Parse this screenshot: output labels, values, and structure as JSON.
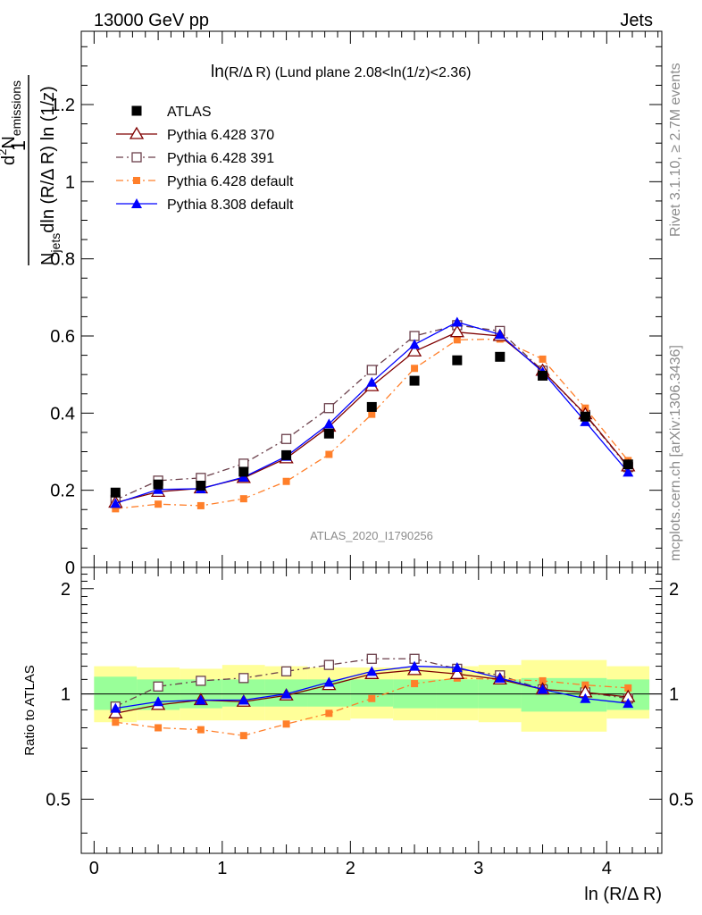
{
  "header": {
    "left": "13000 GeV pp",
    "right": "Jets"
  },
  "side_labels": {
    "rivet": "Rivet 3.1.10, ≥ 2.7M events",
    "mcplots": "mcplots.cern.ch [arXiv:1306.3436]"
  },
  "watermark": "ATLAS_2020_I1790256",
  "chart_data": [
    {
      "type": "scatter",
      "title_main": "ln",
      "title_detail": "(R/Δ R) (Lund plane 2.08<ln(1/z)<2.36)",
      "ylabel": "1/N_jets d²N_emissions / dln(R/Δ R) ln(1/z)",
      "ylabel_parts": {
        "one": "1",
        "d2": "d",
        "sq": "2",
        "N": "N",
        "emissions": "emissions",
        "Njets": "N",
        "jets": "jets",
        "dln": "dln (R/Δ R) ln (1/z)"
      },
      "xlim": [
        -0.1,
        4.43
      ],
      "ylim": [
        0,
        1.39
      ],
      "yticks": [
        0,
        0.2,
        0.4,
        0.6,
        0.8,
        1,
        1.2
      ],
      "ytick_labels": [
        "0",
        "0.2",
        "0.4",
        "0.6",
        "0.8",
        "1",
        "1.2"
      ],
      "x": [
        0.167,
        0.5,
        0.833,
        1.167,
        1.5,
        1.833,
        2.167,
        2.5,
        2.833,
        3.167,
        3.5,
        3.833,
        4.167
      ],
      "series": [
        {
          "name": "ATLAS",
          "color": "#000000",
          "marker": "square-filled",
          "line": "none",
          "values": [
            0.194,
            0.215,
            0.212,
            0.248,
            0.291,
            0.347,
            0.416,
            0.484,
            0.537,
            0.546,
            0.497,
            0.391,
            0.267
          ]
        },
        {
          "name": "Pythia 6.428 370",
          "color": "#7f0000",
          "marker": "triangle-open",
          "line": "solid",
          "values": [
            0.168,
            0.196,
            0.205,
            0.232,
            0.283,
            0.365,
            0.47,
            0.56,
            0.61,
            0.6,
            0.51,
            0.397,
            0.262
          ]
        },
        {
          "name": "Pythia 6.428 391",
          "color": "#6b3f4a",
          "marker": "square-open",
          "line": "dashdot",
          "values": [
            0.175,
            0.225,
            0.232,
            0.269,
            0.333,
            0.413,
            0.512,
            0.6,
            0.628,
            0.613,
            0.51,
            0.395,
            0.26
          ]
        },
        {
          "name": "Pythia 6.428 default",
          "color": "#ff7f2a",
          "marker": "square-filled-small",
          "line": "dashdot",
          "values": [
            0.152,
            0.164,
            0.16,
            0.178,
            0.223,
            0.293,
            0.397,
            0.516,
            0.59,
            0.592,
            0.54,
            0.413,
            0.277
          ]
        },
        {
          "name": "Pythia 8.308 default",
          "color": "#0000ff",
          "marker": "triangle-filled",
          "line": "solid",
          "values": [
            0.166,
            0.202,
            0.204,
            0.234,
            0.288,
            0.372,
            0.48,
            0.578,
            0.636,
            0.604,
            0.507,
            0.378,
            0.247
          ]
        }
      ]
    },
    {
      "type": "scatter",
      "ylabel": "Ratio to ATLAS",
      "xlabel": "ln (R/Δ R)",
      "xlim": [
        -0.1,
        4.43
      ],
      "ylim": [
        0.35,
        2.3
      ],
      "xticks": [
        0,
        1,
        2,
        3,
        4
      ],
      "xtick_labels": [
        "0",
        "1",
        "2",
        "3",
        "4"
      ],
      "yticks": [
        0.5,
        1,
        2
      ],
      "ytick_labels": [
        "0.5",
        "1",
        "2"
      ],
      "bin_edges": [
        0,
        0.333,
        0.667,
        1.0,
        1.333,
        1.667,
        2.0,
        2.333,
        2.667,
        3.0,
        3.333,
        3.667,
        4.0,
        4.333
      ],
      "band_inner": [
        [
          0.9,
          1.12
        ],
        [
          0.9,
          1.1
        ],
        [
          0.91,
          1.1
        ],
        [
          0.92,
          1.1
        ],
        [
          0.92,
          1.1
        ],
        [
          0.92,
          1.1
        ],
        [
          0.92,
          1.1
        ],
        [
          0.91,
          1.1
        ],
        [
          0.91,
          1.1
        ],
        [
          0.91,
          1.1
        ],
        [
          0.89,
          1.11
        ],
        [
          0.89,
          1.11
        ],
        [
          0.9,
          1.1
        ]
      ],
      "band_outer": [
        [
          0.83,
          1.2
        ],
        [
          0.84,
          1.19
        ],
        [
          0.84,
          1.18
        ],
        [
          0.84,
          1.21
        ],
        [
          0.84,
          1.2
        ],
        [
          0.84,
          1.19
        ],
        [
          0.85,
          1.19
        ],
        [
          0.84,
          1.19
        ],
        [
          0.84,
          1.2
        ],
        [
          0.83,
          1.21
        ],
        [
          0.78,
          1.25
        ],
        [
          0.78,
          1.25
        ],
        [
          0.85,
          1.2
        ]
      ],
      "x": [
        0.167,
        0.5,
        0.833,
        1.167,
        1.5,
        1.833,
        2.167,
        2.5,
        2.833,
        3.167,
        3.5,
        3.833,
        4.167
      ],
      "series": [
        {
          "name": "Pythia 6.428 370",
          "values": [
            0.88,
            0.93,
            0.96,
            0.95,
            0.99,
            1.06,
            1.14,
            1.17,
            1.14,
            1.1,
            1.03,
            1.01,
            0.98
          ]
        },
        {
          "name": "Pythia 6.428 391",
          "values": [
            0.92,
            1.05,
            1.09,
            1.11,
            1.16,
            1.21,
            1.26,
            1.26,
            1.18,
            1.13,
            1.03,
            1.01,
            0.97
          ]
        },
        {
          "name": "Pythia 6.428 default",
          "values": [
            0.83,
            0.8,
            0.79,
            0.76,
            0.82,
            0.88,
            0.97,
            1.07,
            1.11,
            1.1,
            1.09,
            1.06,
            1.04
          ]
        },
        {
          "name": "Pythia 8.308 default",
          "values": [
            0.91,
            0.95,
            0.96,
            0.96,
            1.0,
            1.08,
            1.16,
            1.2,
            1.19,
            1.11,
            1.03,
            0.97,
            0.94
          ]
        }
      ]
    }
  ]
}
